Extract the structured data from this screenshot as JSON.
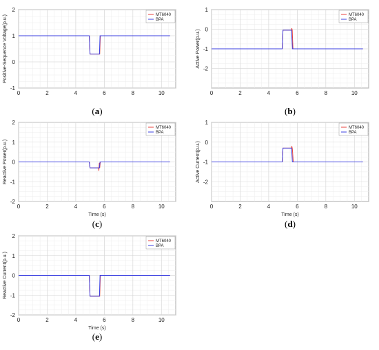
{
  "chart_data": [
    {
      "type": "line",
      "caption_label": "a",
      "xlabel": "",
      "ylabel": "Positive-Sequence Voltage(p.u.)",
      "xlim": [
        0,
        11
      ],
      "ylim": [
        -1,
        2
      ],
      "xticks": [
        "0",
        "2",
        "4",
        "6",
        "8",
        "10"
      ],
      "yticks": [
        "-1",
        "0",
        "1",
        "2"
      ],
      "series": [
        {
          "name": "MT6040",
          "color": "#e8413c",
          "x": [
            0,
            4.95,
            5.0,
            5.05,
            5.6,
            5.68,
            5.72,
            10.6
          ],
          "y": [
            1,
            1,
            0.3,
            0.3,
            0.3,
            0.3,
            1,
            1
          ]
        },
        {
          "name": "BPA",
          "color": "#3b3fe0",
          "x": [
            0,
            4.95,
            5.0,
            5.05,
            5.6,
            5.66,
            5.7,
            10.6
          ],
          "y": [
            1,
            1,
            0.3,
            0.3,
            0.3,
            0.3,
            1,
            1
          ]
        }
      ]
    },
    {
      "type": "line",
      "caption_label": "b",
      "xlabel": "",
      "ylabel": "Active Power(p.u.)",
      "xlim": [
        0,
        11
      ],
      "ylim": [
        -3,
        1
      ],
      "xticks": [
        "0",
        "2",
        "4",
        "6",
        "8",
        "10"
      ],
      "yticks": [
        "-2",
        "-1",
        "0",
        "1"
      ],
      "series": [
        {
          "name": "MT6040",
          "color": "#e8413c",
          "x": [
            0,
            4.95,
            5.0,
            5.05,
            5.6,
            5.62,
            5.65,
            5.7,
            5.75,
            10.6
          ],
          "y": [
            -1,
            -1,
            -0.05,
            -0.05,
            -0.05,
            0.05,
            -0.05,
            -1,
            -1,
            -1
          ]
        },
        {
          "name": "BPA",
          "color": "#3b3fe0",
          "x": [
            0,
            4.95,
            5.0,
            5.05,
            5.6,
            5.66,
            5.7,
            10.6
          ],
          "y": [
            -1,
            -1,
            -0.05,
            -0.05,
            -0.05,
            -1,
            -1,
            -1
          ]
        }
      ]
    },
    {
      "type": "line",
      "caption_label": "c",
      "xlabel": "Time (s)",
      "ylabel": "Reactive Power(p.u.)",
      "xlim": [
        0,
        11
      ],
      "ylim": [
        -2,
        2
      ],
      "xticks": [
        "0",
        "2",
        "4",
        "6",
        "8",
        "10"
      ],
      "yticks": [
        "-2",
        "-1",
        "0",
        "1",
        "2"
      ],
      "series": [
        {
          "name": "MT6040",
          "color": "#e8413c",
          "x": [
            0,
            4.95,
            5.0,
            5.05,
            5.6,
            5.62,
            5.65,
            5.68,
            5.72,
            10.6
          ],
          "y": [
            0,
            0,
            -0.3,
            -0.3,
            -0.3,
            -0.45,
            -0.05,
            -0.3,
            0,
            0
          ]
        },
        {
          "name": "BPA",
          "color": "#3b3fe0",
          "x": [
            0,
            4.95,
            5.0,
            5.05,
            5.6,
            5.66,
            5.7,
            10.6
          ],
          "y": [
            0,
            0,
            -0.3,
            -0.3,
            -0.3,
            -0.3,
            0,
            0
          ]
        }
      ]
    },
    {
      "type": "line",
      "caption_label": "d",
      "xlabel": "Time (s)",
      "ylabel": "Active Current(p.u.)",
      "xlim": [
        0,
        11
      ],
      "ylim": [
        -3,
        1
      ],
      "xticks": [
        "0",
        "2",
        "4",
        "6",
        "8",
        "10"
      ],
      "yticks": [
        "-2",
        "-1",
        "0",
        "1"
      ],
      "series": [
        {
          "name": "MT6040",
          "color": "#e8413c",
          "x": [
            0,
            4.95,
            5.0,
            5.05,
            5.6,
            5.62,
            5.66,
            5.72,
            5.78,
            10.6
          ],
          "y": [
            -1,
            -1,
            -0.3,
            -0.3,
            -0.3,
            -0.2,
            -0.35,
            -1,
            -1,
            -1
          ]
        },
        {
          "name": "BPA",
          "color": "#3b3fe0",
          "x": [
            0,
            4.95,
            5.0,
            5.05,
            5.6,
            5.66,
            5.7,
            10.6
          ],
          "y": [
            -1,
            -1,
            -0.3,
            -0.3,
            -0.3,
            -1,
            -1,
            -1
          ]
        }
      ]
    },
    {
      "type": "line",
      "caption_label": "e",
      "xlabel": "Time (s)",
      "ylabel": "Reactive Current(p.u.)",
      "xlim": [
        0,
        11
      ],
      "ylim": [
        -2,
        2
      ],
      "xticks": [
        "0",
        "2",
        "4",
        "6",
        "8",
        "10"
      ],
      "yticks": [
        "-2",
        "-1",
        "0",
        "1",
        "2"
      ],
      "series": [
        {
          "name": "MT6040",
          "color": "#e8413c",
          "x": [
            0,
            4.95,
            5.0,
            5.05,
            5.6,
            5.68,
            5.72,
            10.6
          ],
          "y": [
            0,
            0,
            -1.05,
            -1.05,
            -1.05,
            -1.05,
            0,
            0
          ]
        },
        {
          "name": "BPA",
          "color": "#3b3fe0",
          "x": [
            0,
            4.95,
            5.0,
            5.05,
            5.6,
            5.66,
            5.7,
            10.6
          ],
          "y": [
            0,
            0,
            -1.05,
            -1.05,
            -1.05,
            -1.05,
            0,
            0
          ]
        }
      ]
    }
  ]
}
